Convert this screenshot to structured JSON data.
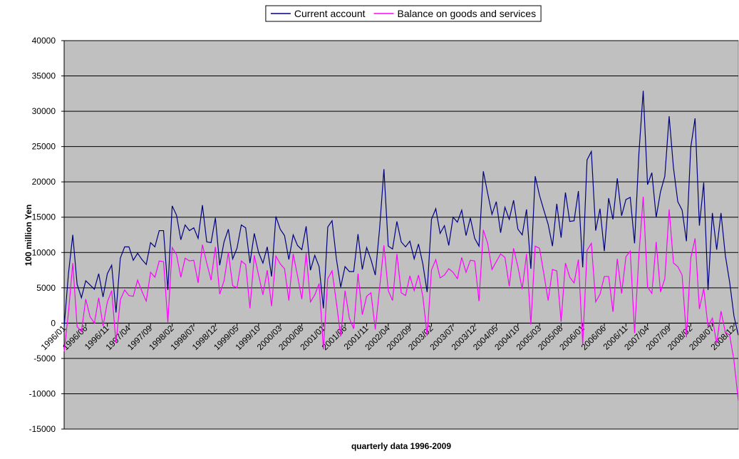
{
  "chart_data": {
    "type": "line",
    "y_label": "100 million Yen",
    "x_label": "quarterly data 1996-2009",
    "legend": "top",
    "grid": true,
    "ylim": [
      -15000,
      40000
    ],
    "yticks": [
      -15000,
      -10000,
      -5000,
      0,
      5000,
      10000,
      15000,
      20000,
      25000,
      30000,
      35000,
      40000
    ],
    "categories": [
      "1996/01",
      null,
      null,
      null,
      null,
      "1996/06",
      null,
      null,
      null,
      null,
      "1996/11",
      null,
      null,
      null,
      null,
      "1997/04",
      null,
      null,
      null,
      null,
      "1997/09",
      null,
      null,
      null,
      null,
      "1998/02",
      null,
      null,
      null,
      null,
      "1998/07",
      null,
      null,
      null,
      null,
      "1998/12",
      null,
      null,
      null,
      null,
      "1999/05",
      null,
      null,
      null,
      null,
      "1999/10",
      null,
      null,
      null,
      null,
      "2000/03",
      null,
      null,
      null,
      null,
      "2000/08",
      null,
      null,
      null,
      null,
      "2001/01",
      null,
      null,
      null,
      null,
      "2001/06",
      null,
      null,
      null,
      null,
      "2001/11",
      null,
      null,
      null,
      null,
      "2002/04",
      null,
      null,
      null,
      null,
      "2002/09",
      null,
      null,
      null,
      null,
      "2003/02",
      null,
      null,
      null,
      null,
      "2003/07",
      null,
      null,
      null,
      null,
      "2003/12",
      null,
      null,
      null,
      null,
      "2004/05",
      null,
      null,
      null,
      null,
      "2004/10",
      null,
      null,
      null,
      null,
      "2005/03",
      null,
      null,
      null,
      null,
      "2005/08",
      null,
      null,
      null,
      null,
      "2006/01",
      null,
      null,
      null,
      null,
      "2006/06",
      null,
      null,
      null,
      null,
      "2006/11",
      null,
      null,
      null,
      null,
      "2007/04",
      null,
      null,
      null,
      null,
      "2007/09",
      null,
      null,
      null,
      null,
      "2008/02",
      null,
      null,
      null,
      null,
      "2008/07",
      null,
      null,
      null,
      null,
      "2008/12",
      null
    ],
    "series": [
      {
        "name": "Current account",
        "color": "#000080",
        "values": [
          -500,
          7000,
          12500,
          5500,
          3600,
          6000,
          5400,
          4800,
          7000,
          3700,
          7000,
          8200,
          1500,
          9200,
          10800,
          10800,
          8900,
          9900,
          9000,
          8300,
          11400,
          10800,
          13100,
          13100,
          4700,
          16600,
          15300,
          11800,
          13900,
          13100,
          13500,
          12000,
          16700,
          11500,
          11400,
          14900,
          8200,
          11500,
          13300,
          9100,
          10600,
          13900,
          13500,
          8500,
          12700,
          10000,
          8500,
          10800,
          6600,
          15100,
          13300,
          12400,
          9000,
          12500,
          11000,
          10400,
          13700,
          7500,
          9600,
          8000,
          2100,
          13600,
          14500,
          9100,
          5100,
          8000,
          7300,
          7300,
          12600,
          7600,
          10700,
          9000,
          6800,
          13400,
          21800,
          10900,
          10500,
          14400,
          11500,
          10800,
          11600,
          9100,
          11200,
          8400,
          4400,
          14700,
          16200,
          12700,
          13800,
          11000,
          15000,
          14300,
          16000,
          12400,
          14900,
          12000,
          10900,
          21500,
          18400,
          15400,
          17200,
          12800,
          16400,
          14700,
          17400,
          13300,
          12500,
          16100,
          7700,
          20800,
          18100,
          16000,
          14000,
          10900,
          16900,
          12100,
          18500,
          14400,
          14500,
          18700,
          7900,
          23100,
          24300,
          13100,
          16200,
          10200,
          17700,
          14700,
          20500,
          15200,
          17500,
          17800,
          11300,
          24000,
          32900,
          19600,
          21300,
          15000,
          18600,
          20800,
          29300,
          22000,
          17200,
          16000,
          11600,
          24900,
          29000,
          13800,
          19900,
          4700,
          15600,
          10400,
          15600,
          9600,
          5800,
          1000,
          -1700
        ]
      },
      {
        "name": "Balance on goods and services",
        "color": "#ff00ff",
        "values": [
          -4000,
          1500,
          8500,
          -500,
          -1200,
          3400,
          900,
          0,
          3600,
          -400,
          3000,
          4600,
          -2800,
          3300,
          4700,
          3900,
          3800,
          6100,
          4500,
          3100,
          7200,
          6500,
          8800,
          8700,
          100,
          10700,
          9700,
          6500,
          9200,
          8800,
          8900,
          5700,
          11100,
          8500,
          6100,
          10800,
          4100,
          6000,
          10000,
          5300,
          5000,
          8800,
          8300,
          2100,
          9600,
          6800,
          4000,
          7500,
          2400,
          9500,
          8400,
          7700,
          3200,
          9800,
          6700,
          3400,
          9900,
          3000,
          4000,
          5600,
          -3700,
          6300,
          7400,
          2900,
          -1900,
          4600,
          700,
          -800,
          7000,
          1200,
          3800,
          4300,
          -900,
          5000,
          11000,
          4600,
          3200,
          9800,
          4300,
          3900,
          6700,
          4600,
          6800,
          3800,
          -1800,
          7500,
          9000,
          6400,
          6800,
          7700,
          7200,
          6300,
          9300,
          7200,
          8900,
          8800,
          3100,
          13200,
          11300,
          7600,
          8700,
          9800,
          9300,
          5200,
          10600,
          8000,
          4800,
          9800,
          -200,
          10900,
          10600,
          7000,
          3200,
          7600,
          7400,
          200,
          8500,
          6500,
          5700,
          9000,
          -3000,
          10300,
          11300,
          3000,
          4100,
          6600,
          6600,
          1600,
          9100,
          4200,
          9400,
          10200,
          -1400,
          9600,
          17900,
          5100,
          4200,
          11500,
          4400,
          6300,
          16100,
          8500,
          8000,
          6800,
          -2000,
          9200,
          12000,
          2000,
          4900,
          -500,
          700,
          -2900,
          1700,
          -1300,
          -1700,
          -5300,
          -11000
        ]
      }
    ]
  }
}
